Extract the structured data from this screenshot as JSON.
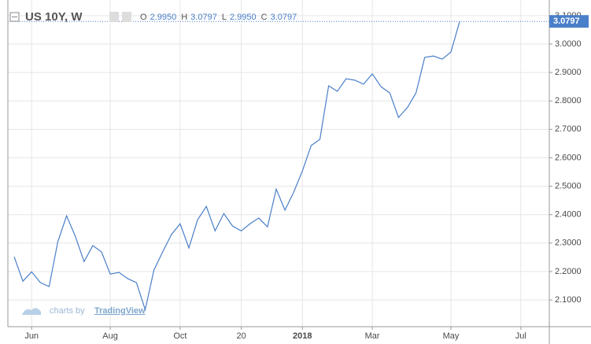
{
  "chart_data": {
    "type": "line",
    "title": "US 10Y, W",
    "ohlc": [
      {
        "label": "O",
        "value": "2.9950"
      },
      {
        "label": "H",
        "value": "3.0797"
      },
      {
        "label": "L",
        "value": "2.9950"
      },
      {
        "label": "C",
        "value": "3.0797"
      }
    ],
    "watermark": {
      "prefix": "charts by",
      "brand": "TradingView"
    },
    "x": [
      0,
      1,
      2,
      3,
      4,
      5,
      6,
      7,
      8,
      9,
      10,
      11,
      12,
      13,
      14,
      15,
      16,
      17,
      18,
      19,
      20,
      21,
      22,
      23,
      24,
      25,
      26,
      27,
      28,
      29,
      30,
      31,
      32,
      33,
      34,
      35,
      36,
      37,
      38,
      39,
      40,
      41,
      42,
      43,
      44,
      45,
      46,
      47,
      48,
      49,
      50,
      51
    ],
    "series": [
      {
        "name": "US 10Y",
        "color": "#4a7fc9",
        "values": [
          2.252,
          2.166,
          2.199,
          2.161,
          2.147,
          2.305,
          2.396,
          2.324,
          2.235,
          2.291,
          2.269,
          2.191,
          2.197,
          2.175,
          2.161,
          2.066,
          2.205,
          2.269,
          2.33,
          2.368,
          2.283,
          2.382,
          2.429,
          2.343,
          2.404,
          2.36,
          2.343,
          2.368,
          2.388,
          2.357,
          2.49,
          2.416,
          2.479,
          2.554,
          2.643,
          2.665,
          2.853,
          2.834,
          2.878,
          2.873,
          2.859,
          2.895,
          2.85,
          2.828,
          2.742,
          2.776,
          2.828,
          2.953,
          2.958,
          2.947,
          2.972,
          3.0797
        ],
        "last_label": "3.0797"
      }
    ],
    "xlim": [
      -0.72,
      61.26
    ],
    "xticks": [
      {
        "value": 2,
        "label": "Jun"
      },
      {
        "value": 11,
        "label": "Aug"
      },
      {
        "value": 19,
        "label": "Oct"
      },
      {
        "value": 26,
        "label": "20"
      },
      {
        "value": 33,
        "label": "2018"
      },
      {
        "value": 41,
        "label": "Mar"
      },
      {
        "value": 50,
        "label": "May"
      },
      {
        "value": 58,
        "label": "Jul"
      }
    ],
    "ylim": [
      2.006,
      3.155
    ],
    "yticks": [
      {
        "value": 2.1,
        "label": "2.1000"
      },
      {
        "value": 2.2,
        "label": "2.2000"
      },
      {
        "value": 2.3,
        "label": "2.3000"
      },
      {
        "value": 2.4,
        "label": "2.4000"
      },
      {
        "value": 2.5,
        "label": "2.5000"
      },
      {
        "value": 2.6,
        "label": "2.6000"
      },
      {
        "value": 2.7,
        "label": "2.7000"
      },
      {
        "value": 2.8,
        "label": "2.8000"
      },
      {
        "value": 2.9,
        "label": "2.9000"
      },
      {
        "value": 3.0,
        "label": "3.0000"
      },
      {
        "value": 3.1,
        "label": "3.1000"
      }
    ],
    "grid": true
  }
}
